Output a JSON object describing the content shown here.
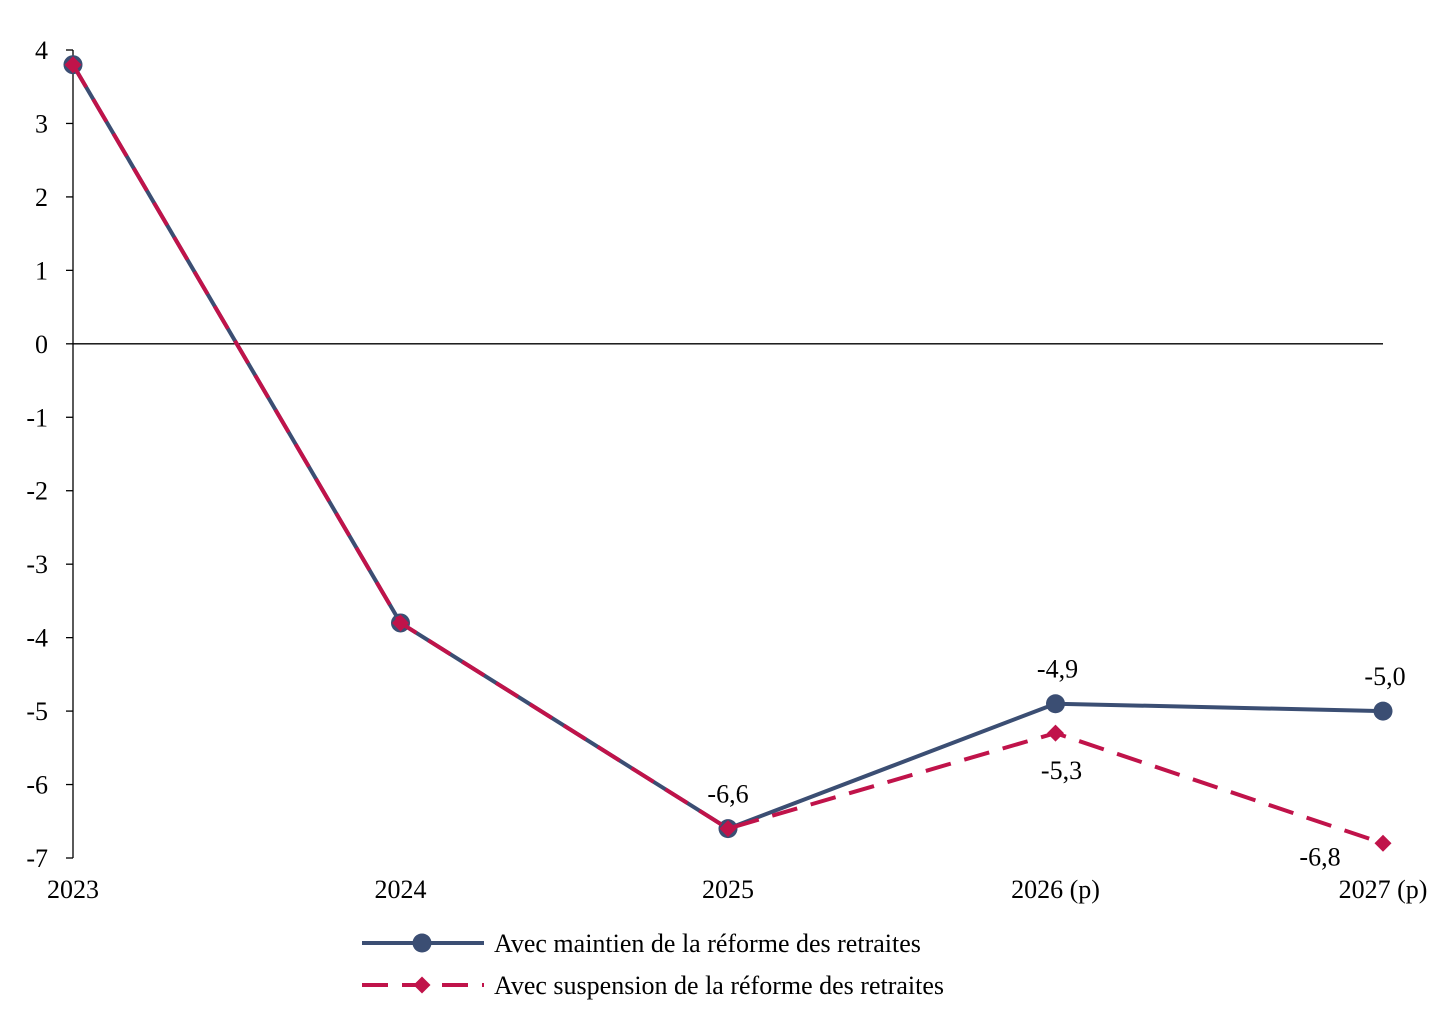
{
  "chart_data": {
    "type": "line",
    "categories": [
      "2023",
      "2024",
      "2025",
      "2026 (p)",
      "2027 (p)"
    ],
    "series": [
      {
        "name": "Avec maintien de la réforme des retraites",
        "values": [
          3.8,
          -3.8,
          -6.6,
          -4.9,
          -5.0
        ],
        "color": "#3b4e73",
        "style": "solid",
        "marker": "circle",
        "data_labels": [
          "",
          "",
          "-6,6",
          "-4,9",
          "-5,0"
        ]
      },
      {
        "name": "Avec suspension de la réforme des retraites",
        "values": [
          3.8,
          -3.8,
          -6.6,
          -5.3,
          -6.8
        ],
        "color": "#c0134a",
        "style": "dashed",
        "marker": "diamond",
        "data_labels": [
          "",
          "",
          "",
          "-5,3",
          "-6,8"
        ]
      }
    ],
    "yticks": [
      "4",
      "3",
      "2",
      "1",
      "0",
      "-1",
      "-2",
      "-3",
      "-4",
      "-5",
      "-6",
      "-7"
    ],
    "ylim": [
      -7,
      4
    ],
    "title": "",
    "xlabel": "",
    "ylabel": "",
    "grid": false,
    "legend_position": "bottom-center"
  }
}
